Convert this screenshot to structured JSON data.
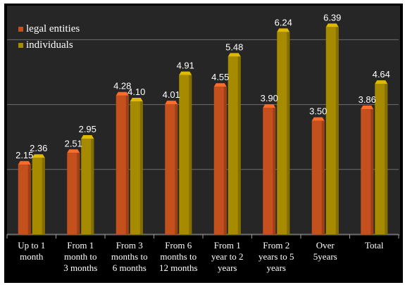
{
  "chart_data": {
    "type": "bar",
    "categories": [
      "Up to 1 month",
      "From 1 month to 3 months",
      "From 3 months to 6 months",
      "From 6 months to 12 months",
      "From 1 year to 2 years",
      "From 2 years to 5 years",
      "Over 5years",
      "Total"
    ],
    "series": [
      {
        "name": "legal entities",
        "values": [
          2.15,
          2.51,
          4.28,
          4.01,
          4.55,
          3.9,
          3.5,
          3.86
        ],
        "color": "#C4501E"
      },
      {
        "name": "individuals",
        "values": [
          2.36,
          2.95,
          4.1,
          4.91,
          5.48,
          6.24,
          6.39,
          4.64
        ],
        "color": "#A68A00"
      }
    ],
    "data_labels": [
      [
        "2.15",
        "2.51",
        "4.28",
        "4.01",
        "4.55",
        "3.90",
        "3.50",
        "3.86"
      ],
      [
        "2.36",
        "2.95",
        "4.10",
        "4.91",
        "5.48",
        "6.24",
        "6.39",
        "4.64"
      ]
    ],
    "ylim": [
      0,
      8
    ],
    "gridlines": [
      2,
      4,
      6,
      8
    ],
    "grid": true,
    "legend_position": "top-left",
    "title": "",
    "xlabel": "",
    "ylabel": ""
  },
  "category_lines": [
    [
      "Up to 1",
      "month"
    ],
    [
      "From 1",
      "month to",
      "3 months"
    ],
    [
      "From 3",
      "months to",
      "6 months"
    ],
    [
      "From 6",
      "months to",
      "12 months"
    ],
    [
      "From 1",
      "year to 2",
      "years"
    ],
    [
      "From 2",
      "years to 5",
      "years"
    ],
    [
      "Over",
      "5years"
    ],
    [
      "Total"
    ]
  ],
  "colors": {
    "background": "#000000",
    "plot_area": "#262626",
    "gridline": "#6E6E6E",
    "text": "#FFFFFF"
  }
}
